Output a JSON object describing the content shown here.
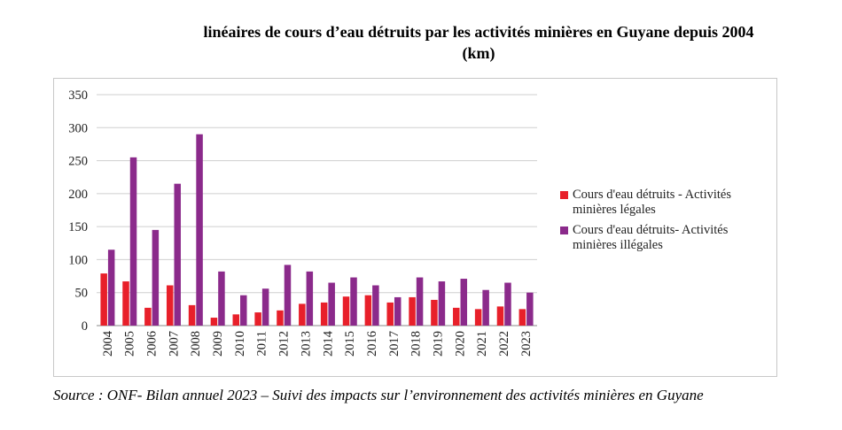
{
  "title": "linéaires de cours d’eau détruits par les activités minières en Guyane depuis 2004\n(km)",
  "source": "Source : ONF- Bilan annuel 2023 – Suivi des impacts sur l’environnement des activités minières en Guyane",
  "chart_data": {
    "type": "bar",
    "title": "linéaires de cours d’eau détruits par les activités minières en Guyane depuis 2004 (km)",
    "xlabel": "",
    "ylabel": "",
    "ylim": [
      0,
      350
    ],
    "yticks": [
      0,
      50,
      100,
      150,
      200,
      250,
      300,
      350
    ],
    "grid": true,
    "legend_position": "right",
    "categories": [
      "2004",
      "2005",
      "2006",
      "2007",
      "2008",
      "2009",
      "2010",
      "2011",
      "2012",
      "2013",
      "2014",
      "2015",
      "2016",
      "2017",
      "2018",
      "2019",
      "2020",
      "2021",
      "2022",
      "2023"
    ],
    "series": [
      {
        "name": "Cours d'eau détruits - Activités minières légales",
        "color": "#e8202a",
        "values": [
          79,
          67,
          27,
          61,
          31,
          12,
          17,
          20,
          23,
          33,
          35,
          44,
          46,
          35,
          43,
          39,
          27,
          25,
          29,
          25
        ]
      },
      {
        "name": "Cours d'eau détruits- Activités minières illégales",
        "color": "#8b2a8b",
        "values": [
          115,
          255,
          145,
          215,
          290,
          82,
          46,
          56,
          92,
          82,
          65,
          73,
          61,
          43,
          73,
          67,
          71,
          54,
          65,
          50
        ]
      }
    ]
  }
}
